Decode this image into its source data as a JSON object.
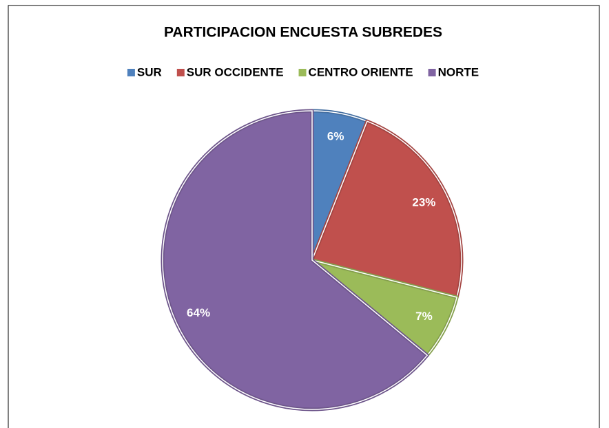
{
  "chart_data": {
    "type": "pie",
    "title": "PARTICIPACION ENCUESTA SUBREDES",
    "categories": [
      "SUR",
      "SUR OCCIDENTE",
      "CENTRO ORIENTE",
      "NORTE"
    ],
    "values": [
      6,
      23,
      7,
      64
    ],
    "value_labels": [
      "6%",
      "23%",
      "7%",
      "64%"
    ],
    "colors": [
      "#4f81bd",
      "#c0504d",
      "#9bbb59",
      "#8064a2"
    ],
    "legend": "top"
  }
}
